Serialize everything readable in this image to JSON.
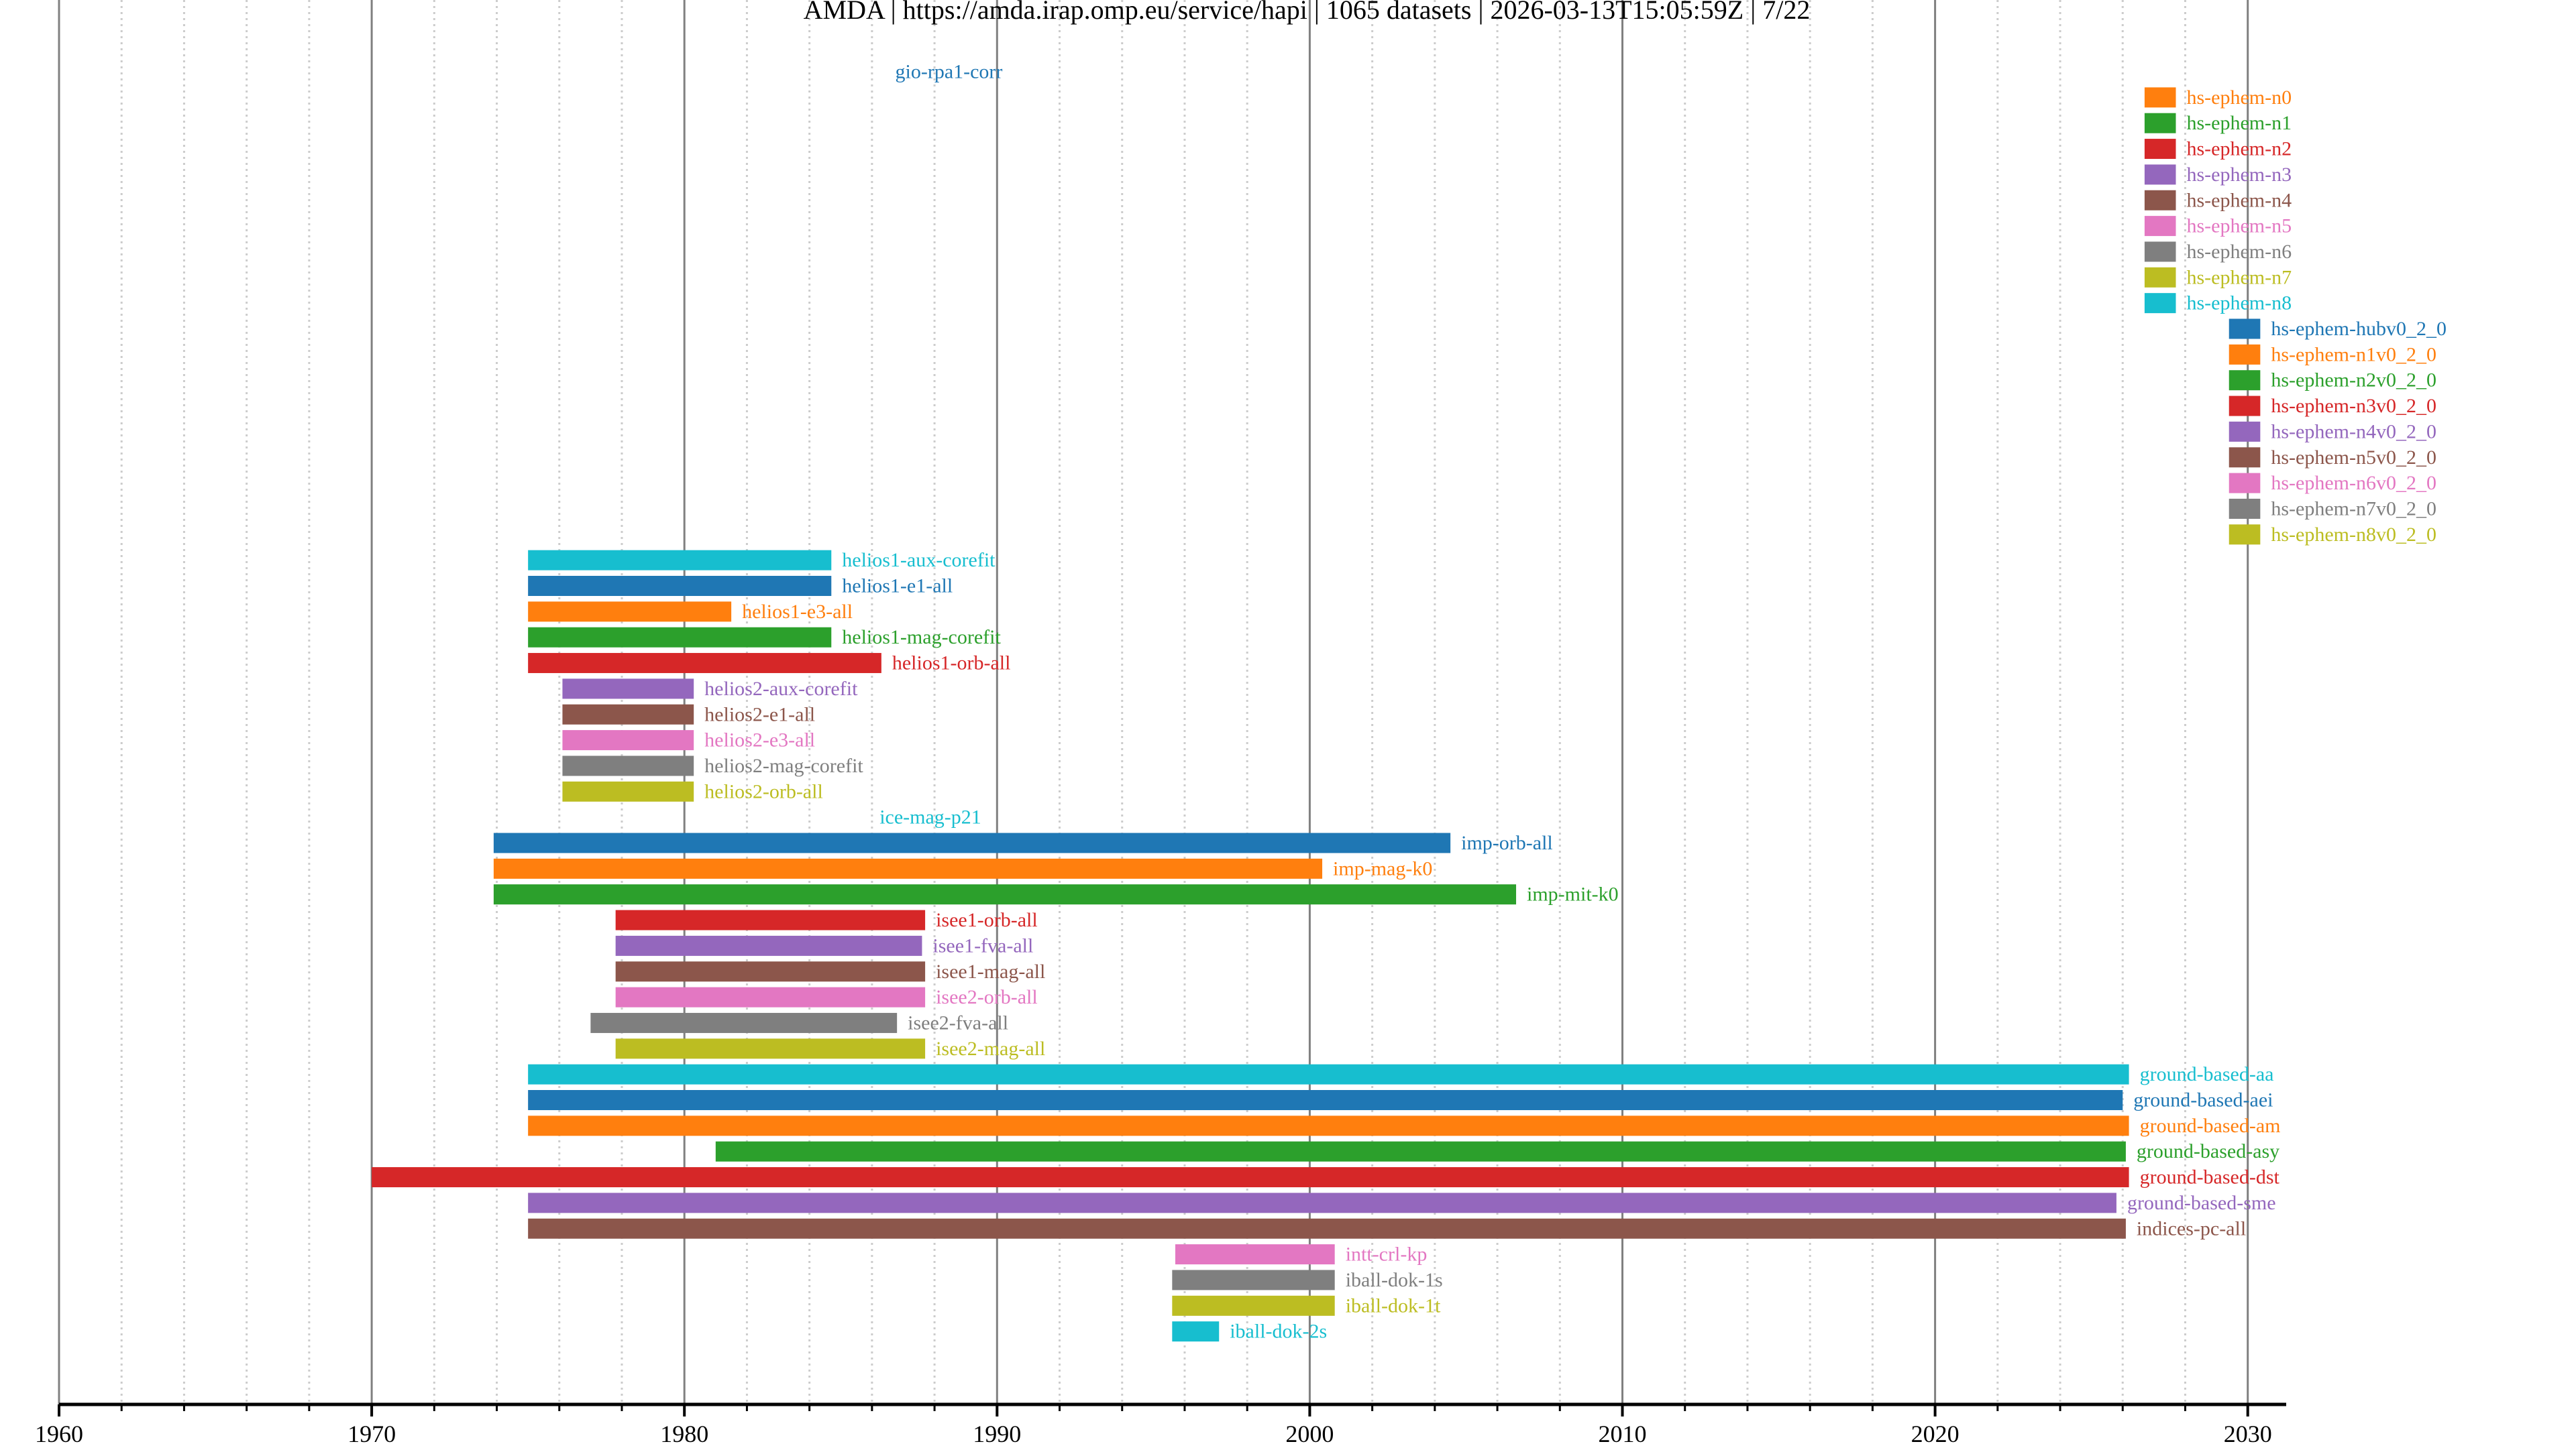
{
  "chart_data": {
    "type": "timeline",
    "title": "AMDA | https://amda.irap.omp.eu/service/hapi | 1065 datasets | 2026-03-13T15:05:59Z | 7/22",
    "xlabel": "",
    "ylabel": "",
    "xlim": [
      1960,
      2031.5
    ],
    "x_major_ticks": [
      1960,
      1970,
      1980,
      1990,
      2000,
      2010,
      2020,
      2030
    ],
    "x_tick_labels": [
      "1960",
      "1970",
      "1980",
      "1990",
      "2000",
      "2010",
      "2020",
      "2030"
    ],
    "x_minor_step": 2,
    "grid": true,
    "palette": [
      "#1f77b4",
      "#ff7f0e",
      "#2ca02c",
      "#d62728",
      "#9467bd",
      "#8c564b",
      "#e377c2",
      "#7f7f7f",
      "#bcbd22",
      "#17becf"
    ],
    "series": [
      {
        "name": "gio-rpa1-corr",
        "start": 1986.4,
        "end": 1986.4
      },
      {
        "name": "hs-ephem-n0",
        "start": 2026.7,
        "end": 2027.7
      },
      {
        "name": "hs-ephem-n1",
        "start": 2026.7,
        "end": 2027.7
      },
      {
        "name": "hs-ephem-n2",
        "start": 2026.7,
        "end": 2027.7
      },
      {
        "name": "hs-ephem-n3",
        "start": 2026.7,
        "end": 2027.7
      },
      {
        "name": "hs-ephem-n4",
        "start": 2026.7,
        "end": 2027.7
      },
      {
        "name": "hs-ephem-n5",
        "start": 2026.7,
        "end": 2027.7
      },
      {
        "name": "hs-ephem-n6",
        "start": 2026.7,
        "end": 2027.7
      },
      {
        "name": "hs-ephem-n7",
        "start": 2026.7,
        "end": 2027.7
      },
      {
        "name": "hs-ephem-n8",
        "start": 2026.7,
        "end": 2027.7
      },
      {
        "name": "hs-ephem-hubv0_2_0",
        "start": 2029.4,
        "end": 2030.4
      },
      {
        "name": "hs-ephem-n1v0_2_0",
        "start": 2029.4,
        "end": 2030.4
      },
      {
        "name": "hs-ephem-n2v0_2_0",
        "start": 2029.4,
        "end": 2030.4
      },
      {
        "name": "hs-ephem-n3v0_2_0",
        "start": 2029.4,
        "end": 2030.4
      },
      {
        "name": "hs-ephem-n4v0_2_0",
        "start": 2029.4,
        "end": 2030.4
      },
      {
        "name": "hs-ephem-n5v0_2_0",
        "start": 2029.4,
        "end": 2030.4
      },
      {
        "name": "hs-ephem-n6v0_2_0",
        "start": 2029.4,
        "end": 2030.4
      },
      {
        "name": "hs-ephem-n7v0_2_0",
        "start": 2029.4,
        "end": 2030.4
      },
      {
        "name": "hs-ephem-n8v0_2_0",
        "start": 2029.4,
        "end": 2030.4
      },
      {
        "name": "helios1-aux-corefit",
        "start": 1975.0,
        "end": 1984.7
      },
      {
        "name": "helios1-e1-all",
        "start": 1975.0,
        "end": 1984.7
      },
      {
        "name": "helios1-e3-all",
        "start": 1975.0,
        "end": 1981.5
      },
      {
        "name": "helios1-mag-corefit",
        "start": 1975.0,
        "end": 1984.7
      },
      {
        "name": "helios1-orb-all",
        "start": 1975.0,
        "end": 1986.3
      },
      {
        "name": "helios2-aux-corefit",
        "start": 1976.1,
        "end": 1980.3
      },
      {
        "name": "helios2-e1-all",
        "start": 1976.1,
        "end": 1980.3
      },
      {
        "name": "helios2-e3-all",
        "start": 1976.1,
        "end": 1980.3
      },
      {
        "name": "helios2-mag-corefit",
        "start": 1976.1,
        "end": 1980.3
      },
      {
        "name": "helios2-orb-all",
        "start": 1976.1,
        "end": 1980.3
      },
      {
        "name": "ice-mag-p21",
        "start": 1985.9,
        "end": 1985.9
      },
      {
        "name": "imp-orb-all",
        "start": 1973.9,
        "end": 2004.5
      },
      {
        "name": "imp-mag-k0",
        "start": 1973.9,
        "end": 2000.4
      },
      {
        "name": "imp-mit-k0",
        "start": 1973.9,
        "end": 2006.6
      },
      {
        "name": "isee1-orb-all",
        "start": 1977.8,
        "end": 1987.7
      },
      {
        "name": "isee1-fva-all",
        "start": 1977.8,
        "end": 1987.6
      },
      {
        "name": "isee1-mag-all",
        "start": 1977.8,
        "end": 1987.7
      },
      {
        "name": "isee2-orb-all",
        "start": 1977.8,
        "end": 1987.7
      },
      {
        "name": "isee2-fva-all",
        "start": 1977.0,
        "end": 1986.8
      },
      {
        "name": "isee2-mag-all",
        "start": 1977.8,
        "end": 1987.7
      },
      {
        "name": "ground-based-aa",
        "start": 1975.0,
        "end": 2026.2
      },
      {
        "name": "ground-based-aei",
        "start": 1975.0,
        "end": 2026.0
      },
      {
        "name": "ground-based-am",
        "start": 1975.0,
        "end": 2026.2
      },
      {
        "name": "ground-based-asy",
        "start": 1981.0,
        "end": 2026.1
      },
      {
        "name": "ground-based-dst",
        "start": 1970.0,
        "end": 2026.2
      },
      {
        "name": "ground-based-sme",
        "start": 1975.0,
        "end": 2025.8
      },
      {
        "name": "indices-pc-all",
        "start": 1975.0,
        "end": 2026.1
      },
      {
        "name": "intt-crl-kp",
        "start": 1995.7,
        "end": 2000.8
      },
      {
        "name": "iball-dok-1s",
        "start": 1995.6,
        "end": 2000.8
      },
      {
        "name": "iball-dok-1t",
        "start": 1995.6,
        "end": 2000.8
      },
      {
        "name": "iball-dok-2s",
        "start": 1995.6,
        "end": 1997.1
      }
    ]
  }
}
